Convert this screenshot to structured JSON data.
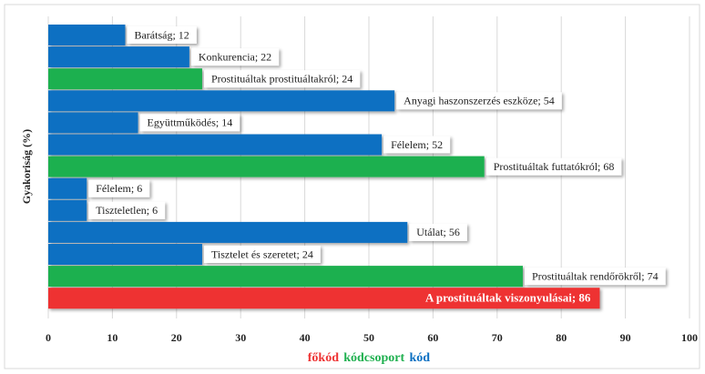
{
  "chart_data": {
    "type": "barh",
    "ylabel": "Gyakoriság (%)",
    "value_labels": [
      "Barátság; 12",
      "Konkurencia; 22",
      "Prostituáltak prostituáltakról; 24",
      "Anyagi haszonszerzés eszköze; 54",
      "Együttműködés; 14",
      "Félelem; 52",
      "Prostituáltak futtatókról; 68",
      "Félelem; 6",
      "Tiszteletlen; 6",
      "Utálat; 56",
      "Tisztelet és szeretet; 24",
      "Prostituáltak rendőrökről; 74",
      "A prostituáltak viszonyulásai; 86"
    ],
    "values": [
      12,
      22,
      24,
      54,
      14,
      52,
      68,
      6,
      6,
      56,
      24,
      74,
      86
    ],
    "groups": [
      2,
      2,
      1,
      2,
      2,
      2,
      1,
      2,
      2,
      2,
      2,
      1,
      0
    ],
    "legend": [
      {
        "name": "főkód",
        "color": "#ee3333"
      },
      {
        "name": "kódcsoport",
        "color": "#1fb04f"
      },
      {
        "name": "kód",
        "color": "#0a6fc2"
      }
    ],
    "xlim": [
      0,
      100
    ],
    "xticks": [
      0,
      10,
      20,
      30,
      40,
      50,
      60,
      70,
      80,
      90,
      100
    ],
    "grid": true
  }
}
